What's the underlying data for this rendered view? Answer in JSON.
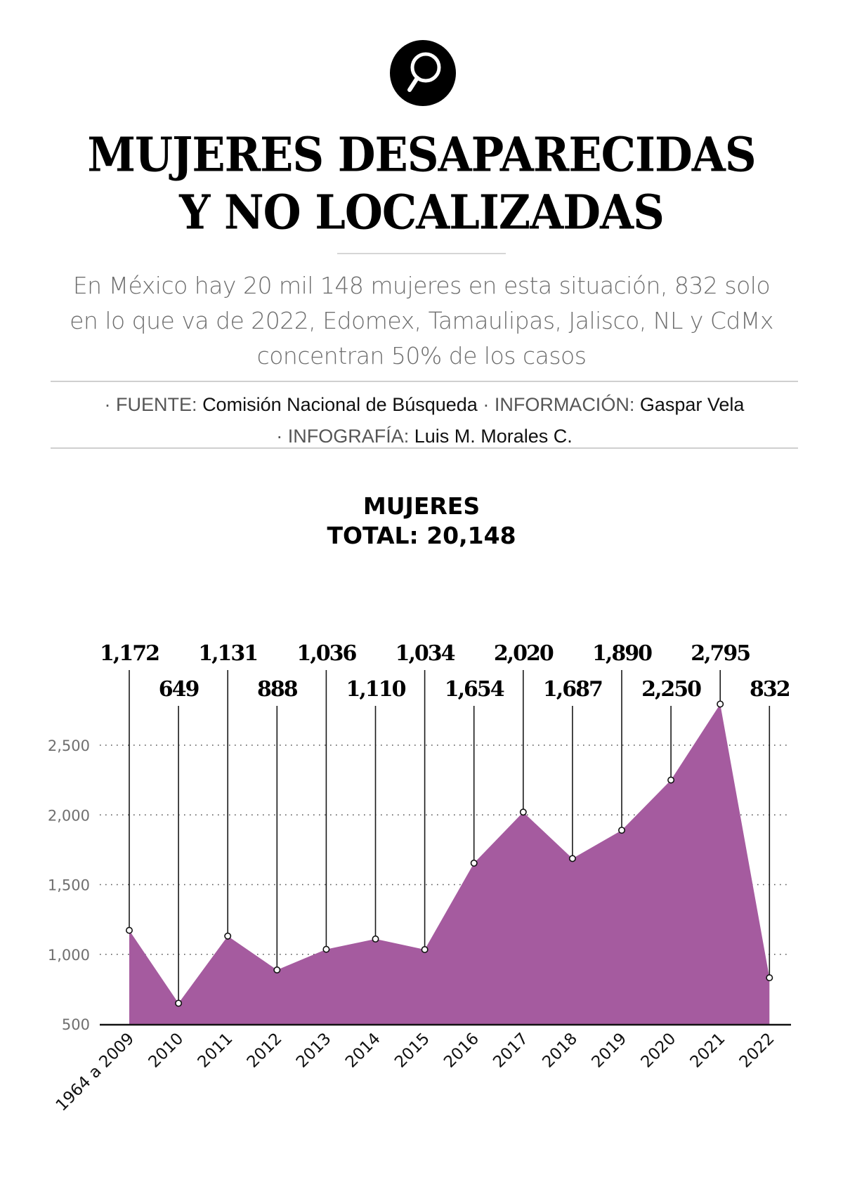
{
  "header": {
    "logo_icon": "magnifier-icon",
    "title_line1": "MUJERES DESAPARECIDAS",
    "title_line2": "Y NO LOCALIZADAS",
    "subtitle_line1": "En México hay 20 mil 148 mujeres en esta situación, 832 solo",
    "subtitle_line2": "en lo que va de 2022, Edomex, Tamaulipas, Jalisco, NL y CdMx",
    "subtitle_line3": "concentran 50% de los casos"
  },
  "credits": {
    "source_label": "· FUENTE:",
    "source_value": "Comisión Nacional de Búsqueda",
    "info_label": "· INFORMACIÓN:",
    "info_value": "Gaspar Vela",
    "graphic_label": "· INFOGRAFÍA:",
    "graphic_value": "Luis M. Morales C."
  },
  "chart_data": {
    "type": "area",
    "title": "MUJERES",
    "subtitle": "TOTAL: 20,148",
    "xlabel": "",
    "ylabel": "",
    "categories": [
      "1964 a 2009",
      "2010",
      "2011",
      "2012",
      "2013",
      "2014",
      "2015",
      "2016",
      "2017",
      "2018",
      "2019",
      "2020",
      "2021",
      "2022"
    ],
    "values": [
      1172,
      649,
      1131,
      888,
      1036,
      1110,
      1034,
      1654,
      2020,
      1687,
      1890,
      2250,
      2795,
      832
    ],
    "value_labels": [
      "1,172",
      "649",
      "1,131",
      "888",
      "1,036",
      "1,110",
      "1,034",
      "1,654",
      "2,020",
      "1,687",
      "1,890",
      "2,250",
      "2,795",
      "832"
    ],
    "ylim": [
      500,
      2800
    ],
    "yticks": [
      500,
      1000,
      1500,
      2000,
      2500
    ],
    "ytick_labels": [
      "500",
      "1,000",
      "1,500",
      "2,000",
      "2,500"
    ],
    "grid": true,
    "legend": "none",
    "fill_color": "#A55B9F",
    "point_color": "#ffffff",
    "line_color": "#1a1a1a"
  }
}
